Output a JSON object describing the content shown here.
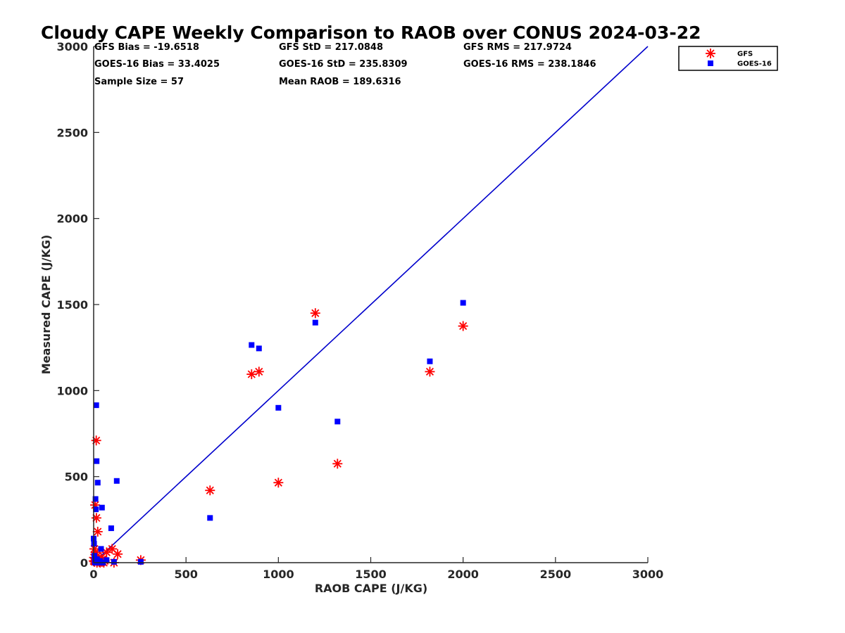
{
  "chart_data": {
    "type": "scatter",
    "title": "Cloudy CAPE Weekly Comparison to RAOB over CONUS 2024-03-22",
    "xlabel": "RAOB CAPE (J/KG)",
    "ylabel": "Measured CAPE (J/KG)",
    "xlim": [
      0,
      3000
    ],
    "ylim": [
      0,
      3000
    ],
    "xticks": [
      "0",
      "500",
      "1000",
      "1500",
      "2000",
      "2500",
      "3000"
    ],
    "yticks": [
      "0",
      "500",
      "1000",
      "1500",
      "2000",
      "2500",
      "3000"
    ],
    "grid": false,
    "legend_position": "top-right",
    "stats": [
      "GFS Bias = -19.6518",
      "GOES-16 Bias = 33.4025",
      "Sample Size = 57",
      "GFS StD = 217.0848",
      "GOES-16 StD = 235.8309",
      "Mean RAOB = 189.6316",
      "GFS RMS = 217.9724",
      "GOES-16 RMS = 238.1846"
    ],
    "reference_line": {
      "x": [
        0,
        3000
      ],
      "y": [
        0,
        3000
      ],
      "color": "#0000cc"
    },
    "series": [
      {
        "name": "GFS",
        "marker": "asterisk",
        "color": "#ff0000",
        "points": [
          [
            0,
            10
          ],
          [
            2,
            30
          ],
          [
            4,
            80
          ],
          [
            5,
            5
          ],
          [
            8,
            335
          ],
          [
            10,
            60
          ],
          [
            12,
            15
          ],
          [
            14,
            710
          ],
          [
            15,
            260
          ],
          [
            18,
            0
          ],
          [
            20,
            40
          ],
          [
            22,
            180
          ],
          [
            25,
            10
          ],
          [
            28,
            20
          ],
          [
            30,
            5
          ],
          [
            35,
            0
          ],
          [
            40,
            30
          ],
          [
            45,
            5
          ],
          [
            50,
            20
          ],
          [
            55,
            0
          ],
          [
            60,
            10
          ],
          [
            70,
            60
          ],
          [
            100,
            80
          ],
          [
            110,
            0
          ],
          [
            130,
            50
          ],
          [
            255,
            15
          ],
          [
            630,
            420
          ],
          [
            855,
            1095
          ],
          [
            895,
            1110
          ],
          [
            1000,
            465
          ],
          [
            1200,
            1450
          ],
          [
            1320,
            575
          ],
          [
            1820,
            1110
          ],
          [
            2000,
            1375
          ]
        ]
      },
      {
        "name": "GOES-16",
        "marker": "square",
        "color": "#0000ff",
        "points": [
          [
            0,
            140
          ],
          [
            2,
            110
          ],
          [
            4,
            40
          ],
          [
            6,
            10
          ],
          [
            8,
            0
          ],
          [
            10,
            370
          ],
          [
            12,
            310
          ],
          [
            14,
            915
          ],
          [
            16,
            590
          ],
          [
            18,
            20
          ],
          [
            22,
            465
          ],
          [
            25,
            0
          ],
          [
            30,
            5
          ],
          [
            35,
            10
          ],
          [
            40,
            80
          ],
          [
            45,
            320
          ],
          [
            50,
            0
          ],
          [
            70,
            15
          ],
          [
            95,
            200
          ],
          [
            110,
            5
          ],
          [
            125,
            475
          ],
          [
            255,
            5
          ],
          [
            630,
            260
          ],
          [
            855,
            1265
          ],
          [
            895,
            1245
          ],
          [
            1000,
            900
          ],
          [
            1200,
            1395
          ],
          [
            1320,
            820
          ],
          [
            1820,
            1170
          ],
          [
            2000,
            1510
          ]
        ]
      }
    ]
  }
}
